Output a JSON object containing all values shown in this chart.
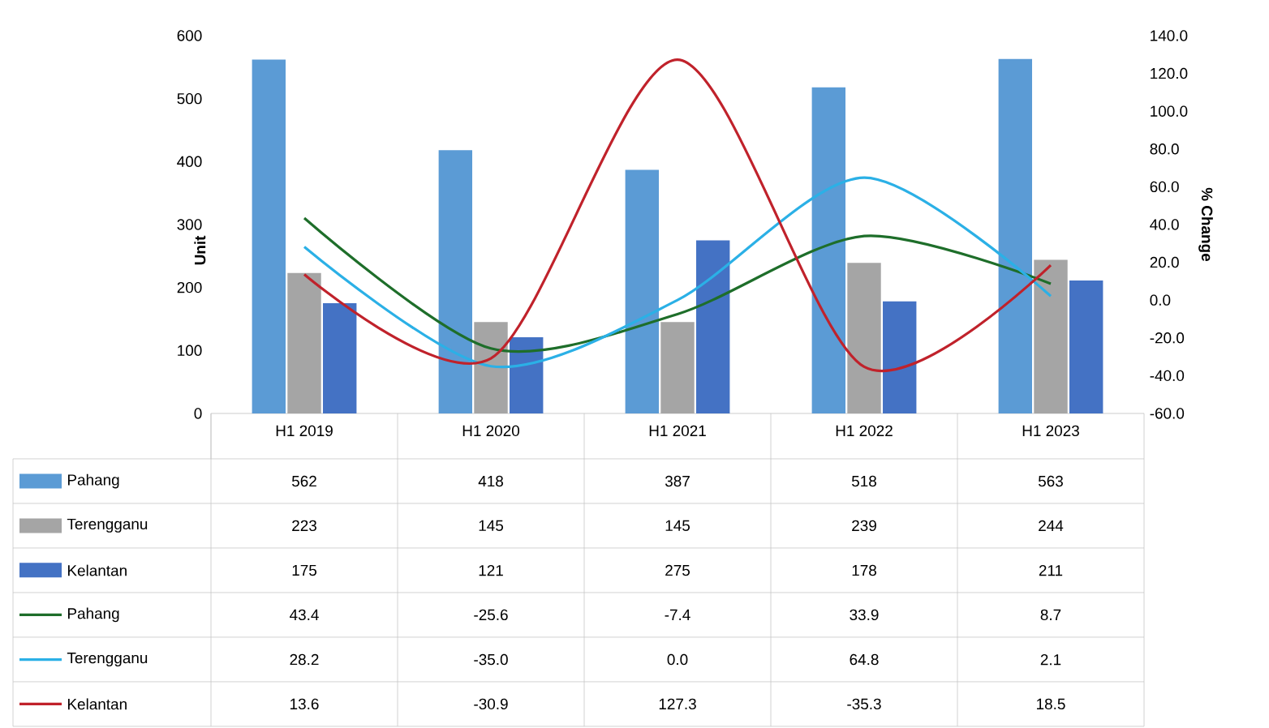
{
  "chart_data": {
    "type": "bar",
    "ylabel": "Unit",
    "y2label": "% Change",
    "categories": [
      "H1 2019",
      "H1 2020",
      "H1 2021",
      "H1 2022",
      "H1 2023"
    ],
    "ylim": [
      0,
      600
    ],
    "yticks": [
      0,
      100,
      200,
      300,
      400,
      500,
      600
    ],
    "y2lim": [
      -60,
      140
    ],
    "y2ticks": [
      {
        "value": -60,
        "label": "-60.0"
      },
      {
        "value": -40,
        "label": "-40.0"
      },
      {
        "value": -20,
        "label": "-20.0"
      },
      {
        "value": 0,
        "label": "0.0"
      },
      {
        "value": 20,
        "label": "20.0"
      },
      {
        "value": 40,
        "label": "40.0"
      },
      {
        "value": 60,
        "label": "60.0"
      },
      {
        "value": 80,
        "label": "80.0"
      },
      {
        "value": 100,
        "label": "100.0"
      },
      {
        "value": 120,
        "label": "120.0"
      },
      {
        "value": 140,
        "label": "140.0"
      }
    ],
    "legend": "bottom",
    "series": [
      {
        "name": "Pahang",
        "color": "#5b9bd5",
        "values": [
          562,
          418,
          387,
          518,
          563
        ],
        "value_labels": [
          "562",
          "418",
          "387",
          "518",
          "563"
        ]
      },
      {
        "name": "Terengganu",
        "color": "#a5a5a5",
        "values": [
          223,
          145,
          145,
          239,
          244
        ],
        "value_labels": [
          "223",
          "145",
          "145",
          "239",
          "244"
        ]
      },
      {
        "name": "Kelantan",
        "color": "#4472c4",
        "values": [
          175,
          121,
          275,
          178,
          211
        ],
        "value_labels": [
          "175",
          "121",
          "275",
          "178",
          "211"
        ]
      },
      {
        "name": "Pahang",
        "type": "line",
        "axis": "y2",
        "color": "#1e6e2a",
        "values": [
          43.4,
          -25.6,
          -7.4,
          33.9,
          8.7
        ],
        "value_labels": [
          "43.4",
          "-25.6",
          "-7.4",
          "33.9",
          "8.7"
        ]
      },
      {
        "name": "Terengganu",
        "type": "line",
        "axis": "y2",
        "color": "#2bb0e6",
        "values": [
          28.2,
          -35.0,
          0.0,
          64.8,
          2.1
        ],
        "value_labels": [
          "28.2",
          "-35.0",
          "0.0",
          "64.8",
          "2.1"
        ]
      },
      {
        "name": "Kelantan",
        "type": "line",
        "axis": "y2",
        "color": "#c0222b",
        "values": [
          13.6,
          -30.9,
          127.3,
          -35.3,
          18.5
        ],
        "value_labels": [
          "13.6",
          "-30.9",
          "127.3",
          "-35.3",
          "18.5"
        ]
      }
    ]
  }
}
